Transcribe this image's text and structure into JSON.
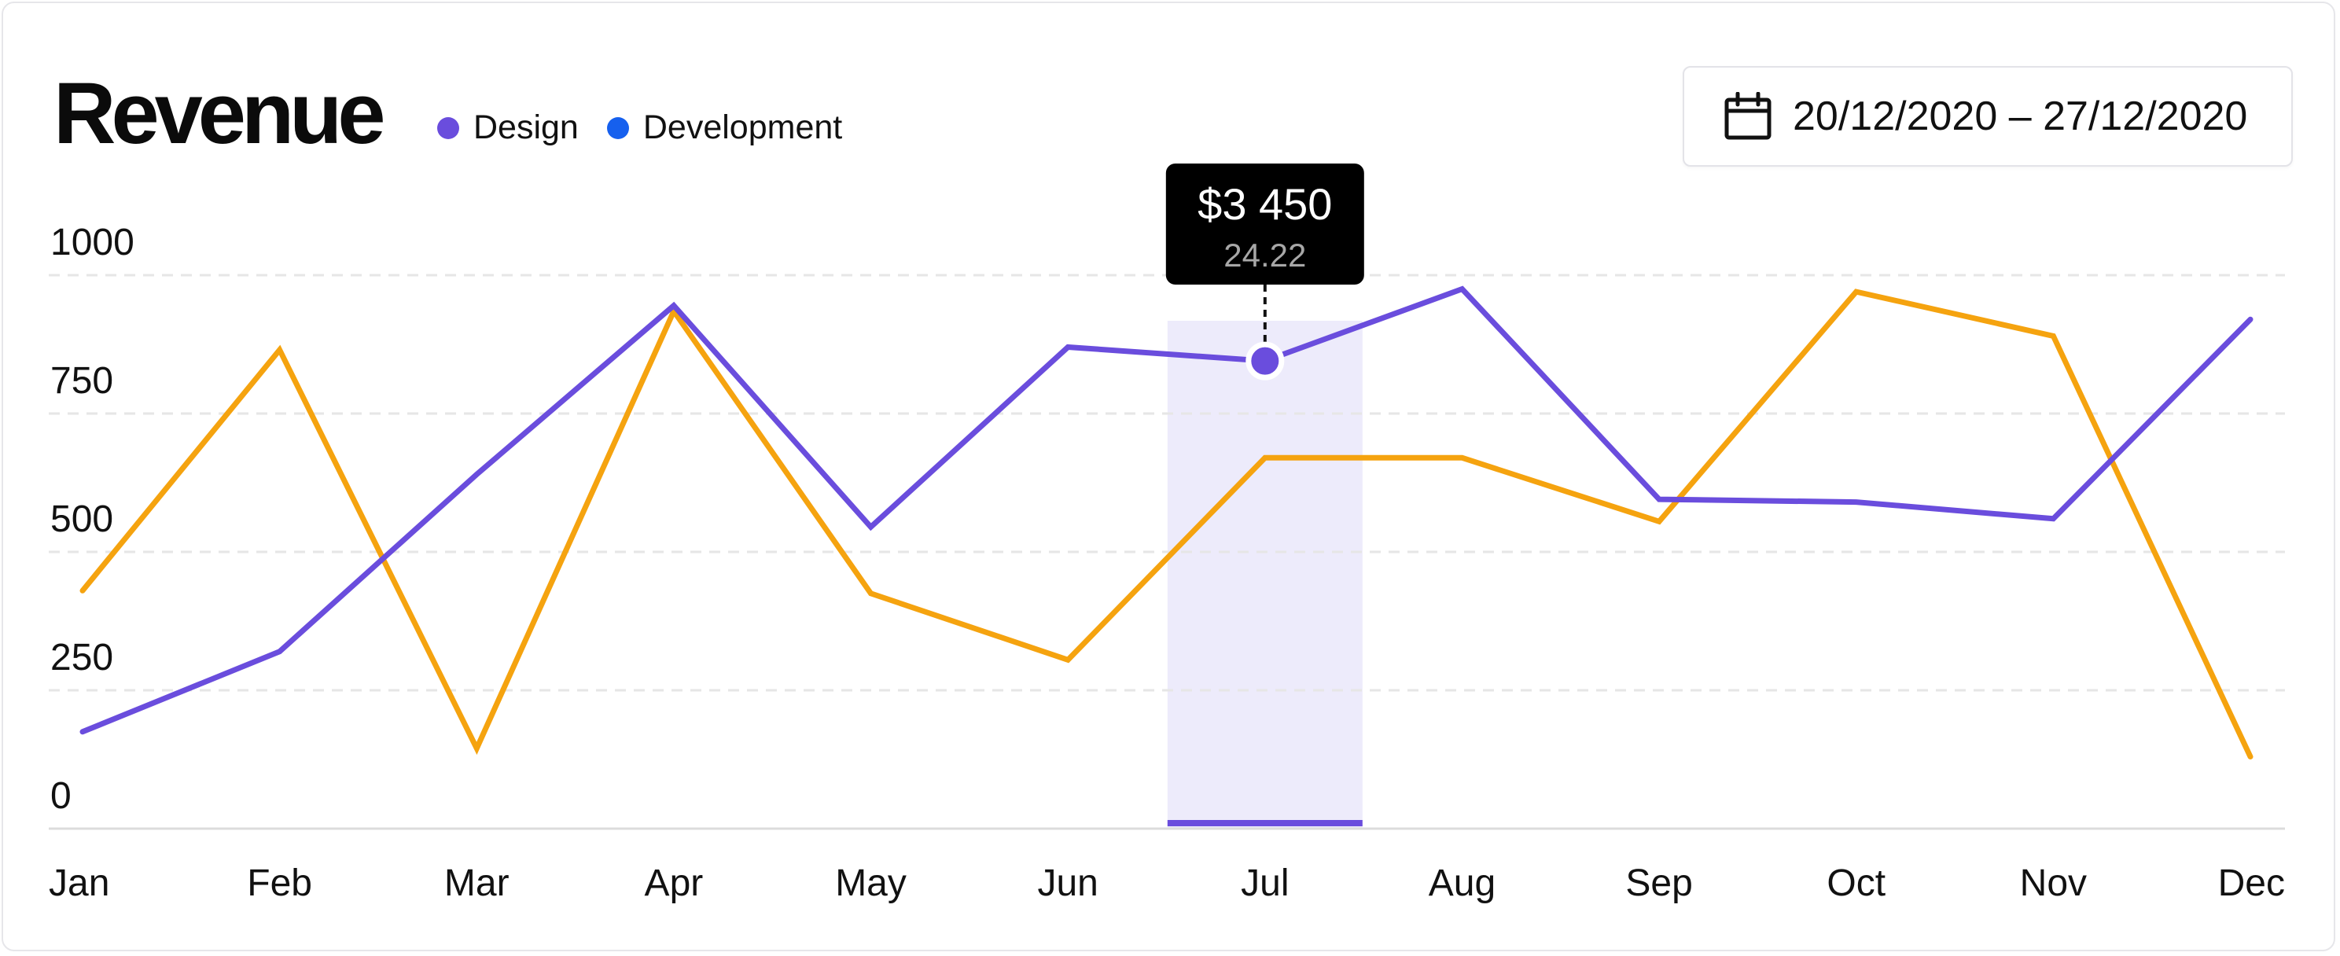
{
  "header": {
    "title": "Revenue",
    "date_range": "20/12/2020 – 27/12/2020",
    "calendar_icon": "calendar-icon"
  },
  "legend": [
    {
      "label": "Design",
      "color": "#6a4ddd"
    },
    {
      "label": "Development",
      "color": "#1660ee"
    }
  ],
  "tooltip": {
    "value": "$3 450",
    "sub": "24.22"
  },
  "chart_data": {
    "type": "line",
    "categories": [
      "Jan",
      "Feb",
      "Mar",
      "Apr",
      "May",
      "Jun",
      "Jul",
      "Aug",
      "Sep",
      "Oct",
      "Nov",
      "Dec"
    ],
    "y_ticks": [
      0,
      250,
      500,
      750,
      1000
    ],
    "ylim": [
      0,
      1000
    ],
    "grid": true,
    "highlight_category": "Jul",
    "highlight_point": {
      "series": "Design",
      "category": "Jul",
      "value": 845
    },
    "series": [
      {
        "name": "Design",
        "color": "#6a4ddd",
        "values": [
          175,
          320,
          640,
          945,
          545,
          870,
          845,
          975,
          595,
          590,
          560,
          920
        ]
      },
      {
        "name": "",
        "color": "#f5a30f",
        "values": [
          430,
          865,
          145,
          935,
          425,
          305,
          670,
          670,
          555,
          970,
          890,
          130
        ]
      }
    ],
    "highlight_fill": "#edebfb",
    "grid_color": "#e6e6e6"
  }
}
